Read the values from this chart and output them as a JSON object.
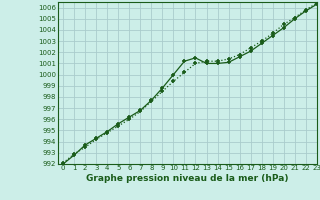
{
  "xlabel": "Graphe pression niveau de la mer (hPa)",
  "xlim": [
    -0.5,
    23
  ],
  "ylim": [
    992,
    1006.5
  ],
  "yticks": [
    992,
    993,
    994,
    995,
    996,
    997,
    998,
    999,
    1000,
    1001,
    1002,
    1003,
    1004,
    1005,
    1006
  ],
  "xticks": [
    0,
    1,
    2,
    3,
    4,
    5,
    6,
    7,
    8,
    9,
    10,
    11,
    12,
    13,
    14,
    15,
    16,
    17,
    18,
    19,
    20,
    21,
    22,
    23
  ],
  "bg_color": "#cceee8",
  "grid_color": "#aacccc",
  "line_color": "#1a5c1a",
  "line1_x": [
    0,
    1,
    2,
    3,
    4,
    5,
    6,
    7,
    8,
    9,
    10,
    11,
    12,
    13,
    14,
    15,
    16,
    17,
    18,
    19,
    20,
    21,
    22,
    23
  ],
  "line1_y": [
    992.0,
    992.8,
    993.7,
    994.3,
    994.9,
    995.6,
    996.2,
    996.8,
    997.7,
    998.8,
    1000.0,
    1001.2,
    1001.5,
    1001.0,
    1001.0,
    1001.1,
    1001.6,
    1002.1,
    1002.8,
    1003.5,
    1004.2,
    1005.0,
    1005.7,
    1006.3
  ],
  "line2_x": [
    0,
    1,
    2,
    3,
    4,
    5,
    6,
    7,
    8,
    9,
    10,
    11,
    12,
    13,
    14,
    15,
    16,
    17,
    18,
    19,
    20,
    21,
    22,
    23
  ],
  "line2_y": [
    992.1,
    992.9,
    993.5,
    994.2,
    994.8,
    995.4,
    996.0,
    996.7,
    997.6,
    998.5,
    999.4,
    1000.2,
    1001.0,
    1001.2,
    1001.2,
    1001.4,
    1001.8,
    1002.4,
    1003.0,
    1003.7,
    1004.5,
    1005.1,
    1005.8,
    1006.4
  ],
  "marker": "+",
  "markersize": 3.5,
  "markeredgewidth": 1.2,
  "linewidth": 0.9,
  "font_color": "#1a5c1a",
  "tick_fontsize": 5.0,
  "xlabel_fontsize": 6.5
}
